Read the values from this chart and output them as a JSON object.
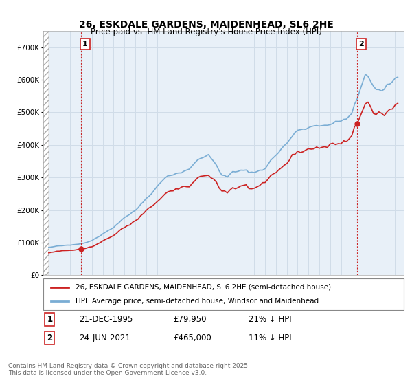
{
  "title": "26, ESKDALE GARDENS, MAIDENHEAD, SL6 2HE",
  "subtitle": "Price paid vs. HM Land Registry's House Price Index (HPI)",
  "ylim": [
    0,
    750000
  ],
  "yticks": [
    0,
    100000,
    200000,
    300000,
    400000,
    500000,
    600000,
    700000
  ],
  "ytick_labels": [
    "£0",
    "£100K",
    "£200K",
    "£300K",
    "£400K",
    "£500K",
    "£600K",
    "£700K"
  ],
  "xlim_start": 1992.5,
  "xlim_end": 2025.8,
  "hpi_color": "#7aadd4",
  "price_color": "#cc2222",
  "grid_color": "#d0dce8",
  "bg_color": "#e8f0f8",
  "marker1_date": 1995.97,
  "marker1_price": 79950,
  "marker1_label": "1",
  "marker1_date_str": "21-DEC-1995",
  "marker1_price_str": "£79,950",
  "marker1_pct": "21% ↓ HPI",
  "marker2_date": 2021.48,
  "marker2_price": 465000,
  "marker2_label": "2",
  "marker2_date_str": "24-JUN-2021",
  "marker2_price_str": "£465,000",
  "marker2_pct": "11% ↓ HPI",
  "legend_line1": "26, ESKDALE GARDENS, MAIDENHEAD, SL6 2HE (semi-detached house)",
  "legend_line2": "HPI: Average price, semi-detached house, Windsor and Maidenhead",
  "footnote": "Contains HM Land Registry data © Crown copyright and database right 2025.\nThis data is licensed under the Open Government Licence v3.0."
}
